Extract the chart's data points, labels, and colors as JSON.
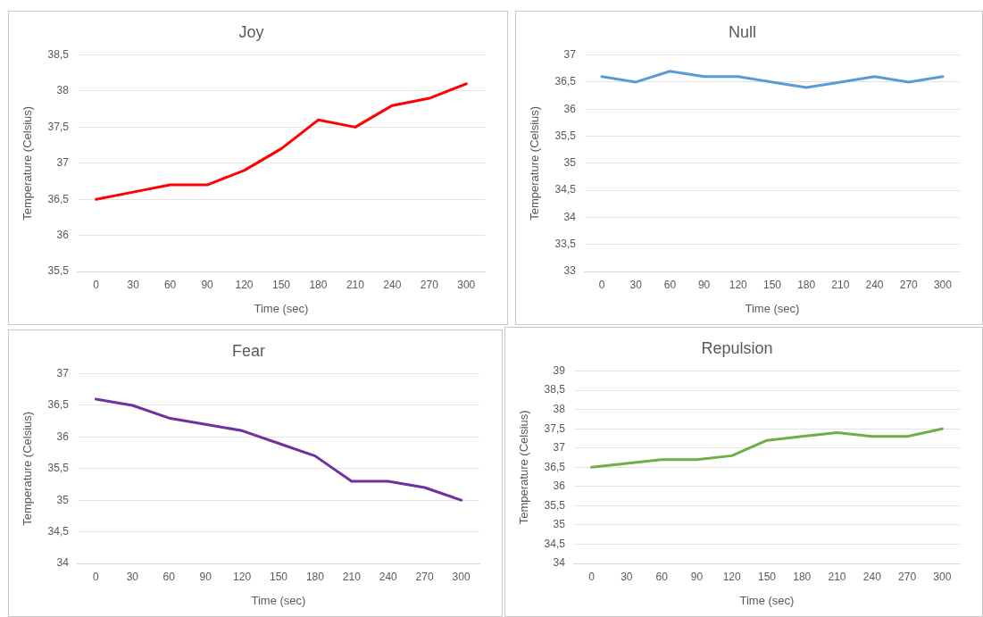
{
  "chart_data": [
    {
      "type": "line",
      "title": "Joy",
      "xlabel": "Time (sec)",
      "ylabel": "Temperature (Celsius)",
      "categories": [
        "0",
        "30",
        "60",
        "90",
        "120",
        "150",
        "180",
        "210",
        "240",
        "270",
        "300"
      ],
      "series": [
        {
          "color": "#ff0000",
          "values": [
            36.5,
            36.6,
            36.7,
            36.7,
            36.9,
            37.2,
            37.6,
            37.5,
            37.8,
            37.9,
            38.1
          ]
        }
      ],
      "ylim": [
        35.5,
        38.5
      ],
      "yticks": [
        {
          "value": 35.5,
          "label": "35,5"
        },
        36,
        {
          "value": 36.5,
          "label": "36,5"
        },
        37,
        {
          "value": 37.5,
          "label": "37,5"
        },
        38,
        {
          "value": 38.5,
          "label": "38,5"
        }
      ],
      "grid": "y",
      "legend": false,
      "marker": "none",
      "line_style": "solid"
    },
    {
      "type": "line",
      "title": "Null",
      "xlabel": "Time (sec)",
      "ylabel": "Temperature (Celsius)",
      "categories": [
        "0",
        "30",
        "60",
        "90",
        "120",
        "150",
        "180",
        "210",
        "240",
        "270",
        "300"
      ],
      "series": [
        {
          "color": "#5b9bd5",
          "values": [
            36.6,
            36.5,
            36.7,
            36.6,
            36.6,
            36.5,
            36.4,
            36.5,
            36.6,
            36.5,
            36.6
          ]
        }
      ],
      "ylim": [
        33,
        37
      ],
      "yticks": [
        33,
        {
          "value": 33.5,
          "label": "33,5"
        },
        34,
        {
          "value": 34.5,
          "label": "34,5"
        },
        35,
        {
          "value": 35.5,
          "label": "35,5"
        },
        36,
        {
          "value": 36.5,
          "label": "36,5"
        },
        37
      ],
      "grid": "y",
      "legend": false,
      "marker": "none",
      "line_style": "solid"
    },
    {
      "type": "line",
      "title": "Fear",
      "xlabel": "Time (sec)",
      "ylabel": "Temperature (Celsius)",
      "categories": [
        "0",
        "30",
        "60",
        "90",
        "120",
        "150",
        "180",
        "210",
        "240",
        "270",
        "300"
      ],
      "series": [
        {
          "color": "#7030a0",
          "values": [
            36.6,
            36.5,
            36.3,
            36.2,
            36.1,
            35.9,
            35.7,
            35.3,
            35.3,
            35.2,
            35.0
          ]
        }
      ],
      "ylim": [
        34,
        37
      ],
      "yticks": [
        34,
        {
          "value": 34.5,
          "label": "34,5"
        },
        35,
        {
          "value": 35.5,
          "label": "35,5"
        },
        36,
        {
          "value": 36.5,
          "label": "36,5"
        },
        37
      ],
      "grid": "y",
      "legend": false,
      "marker": "none",
      "line_style": "solid"
    },
    {
      "type": "line",
      "title": "Repulsion",
      "xlabel": "Time (sec)",
      "ylabel": "Temperature (Celsius)",
      "categories": [
        "0",
        "30",
        "60",
        "90",
        "120",
        "150",
        "180",
        "210",
        "240",
        "270",
        "300"
      ],
      "series": [
        {
          "color": "#70ad47",
          "values": [
            36.5,
            36.6,
            36.7,
            36.7,
            36.8,
            37.2,
            37.3,
            37.4,
            37.3,
            37.3,
            37.5
          ]
        }
      ],
      "ylim": [
        34,
        39
      ],
      "yticks": [
        34,
        {
          "value": 34.5,
          "label": "34,5"
        },
        35,
        {
          "value": 35.5,
          "label": "35,5"
        },
        36,
        {
          "value": 36.5,
          "label": "36,5"
        },
        37,
        {
          "value": 37.5,
          "label": "37,5"
        },
        38,
        {
          "value": 38.5,
          "label": "38,5"
        },
        39
      ],
      "grid": "y",
      "legend": false,
      "marker": "none",
      "line_style": "solid"
    }
  ]
}
